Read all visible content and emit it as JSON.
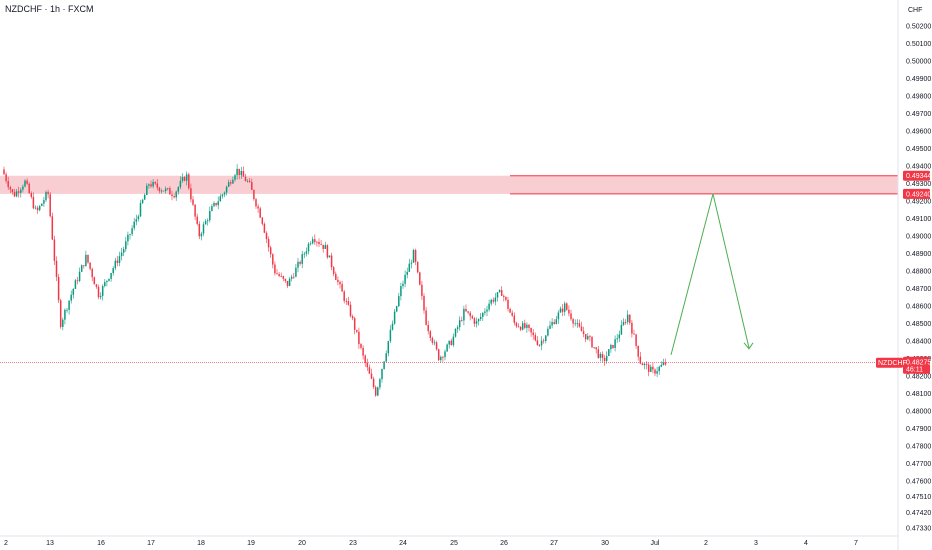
{
  "header": {
    "symbol_title": "NZDCHF · 1h · FXCM"
  },
  "price_axis": {
    "currency": "CHF",
    "ticks": [
      "0.50200",
      "0.50100",
      "0.50000",
      "0.49900",
      "0.49800",
      "0.49700",
      "0.49600",
      "0.49500",
      "0.49400",
      "0.49300",
      "0.49200",
      "0.49100",
      "0.49000",
      "0.48900",
      "0.48800",
      "0.48700",
      "0.48600",
      "0.48500",
      "0.48400",
      "0.48300",
      "0.48200",
      "0.48100",
      "0.48000",
      "0.47900",
      "0.47800",
      "0.47700",
      "0.47600",
      "0.47510",
      "0.47420",
      "0.47330"
    ]
  },
  "time_axis": {
    "ticks": [
      "2",
      "13",
      "16",
      "17",
      "18",
      "19",
      "20",
      "23",
      "24",
      "25",
      "26",
      "27",
      "30",
      "Jul",
      "2",
      "3",
      "4",
      "7"
    ]
  },
  "zone": {
    "top_label": "0.49344",
    "bottom_label": "0.49240",
    "color": "#f23645"
  },
  "current": {
    "symbol": "NZDCHF",
    "price": "0.48275",
    "countdown": "46:11",
    "color": "#f23645"
  },
  "colors": {
    "up": "#089981",
    "down": "#f23645",
    "projection": "#4caf50",
    "zone_fill": "#f7c9cd"
  },
  "chart_data": {
    "type": "candlestick",
    "title": "NZDCHF · 1h · FXCM",
    "ylabel": "CHF",
    "ylim": [
      0.4725,
      0.5027
    ],
    "anchors": [
      {
        "x": "2",
        "y": 0.4938
      },
      {
        "x": "2",
        "y": 0.4923
      },
      {
        "x": "2",
        "y": 0.4931
      },
      {
        "x": "2",
        "y": 0.4913
      },
      {
        "x": "13",
        "y": 0.4925
      },
      {
        "x": "13",
        "y": 0.485
      },
      {
        "x": "13",
        "y": 0.487
      },
      {
        "x": "13",
        "y": 0.4888
      },
      {
        "x": "16",
        "y": 0.4866
      },
      {
        "x": "16",
        "y": 0.488
      },
      {
        "x": "16",
        "y": 0.4893
      },
      {
        "x": "16",
        "y": 0.491
      },
      {
        "x": "17",
        "y": 0.493
      },
      {
        "x": "17",
        "y": 0.4927
      },
      {
        "x": "17",
        "y": 0.4924
      },
      {
        "x": "17",
        "y": 0.4935
      },
      {
        "x": "18",
        "y": 0.49
      },
      {
        "x": "18",
        "y": 0.4915
      },
      {
        "x": "18",
        "y": 0.4925
      },
      {
        "x": "18",
        "y": 0.4938
      },
      {
        "x": "19",
        "y": 0.493
      },
      {
        "x": "19",
        "y": 0.491
      },
      {
        "x": "19",
        "y": 0.488
      },
      {
        "x": "19",
        "y": 0.4872
      },
      {
        "x": "20",
        "y": 0.4885
      },
      {
        "x": "20",
        "y": 0.49
      },
      {
        "x": "20",
        "y": 0.4893
      },
      {
        "x": "20",
        "y": 0.4873
      },
      {
        "x": "23",
        "y": 0.4855
      },
      {
        "x": "23",
        "y": 0.483
      },
      {
        "x": "23",
        "y": 0.481
      },
      {
        "x": "23",
        "y": 0.484
      },
      {
        "x": "24",
        "y": 0.487
      },
      {
        "x": "24",
        "y": 0.489
      },
      {
        "x": "24",
        "y": 0.485
      },
      {
        "x": "24",
        "y": 0.483
      },
      {
        "x": "25",
        "y": 0.484
      },
      {
        "x": "25",
        "y": 0.4857
      },
      {
        "x": "25",
        "y": 0.485
      },
      {
        "x": "25",
        "y": 0.4862
      },
      {
        "x": "26",
        "y": 0.4868
      },
      {
        "x": "26",
        "y": 0.485
      },
      {
        "x": "26",
        "y": 0.4847
      },
      {
        "x": "26",
        "y": 0.4838
      },
      {
        "x": "27",
        "y": 0.485
      },
      {
        "x": "27",
        "y": 0.486
      },
      {
        "x": "27",
        "y": 0.4848
      },
      {
        "x": "27",
        "y": 0.484
      },
      {
        "x": "30",
        "y": 0.4828
      },
      {
        "x": "30",
        "y": 0.484
      },
      {
        "x": "30",
        "y": 0.4855
      },
      {
        "x": "30",
        "y": 0.4828
      },
      {
        "x": "Jul",
        "y": 0.4822
      },
      {
        "x": "Jul",
        "y": 0.4827
      }
    ],
    "projection": [
      {
        "x": "Jul",
        "y": 0.4832
      },
      {
        "x": "2",
        "y": 0.4924
      },
      {
        "x": "3",
        "y": 0.4836
      }
    ],
    "zone": {
      "top": 0.49344,
      "bottom": 0.4924
    },
    "last_price": 0.48275
  }
}
